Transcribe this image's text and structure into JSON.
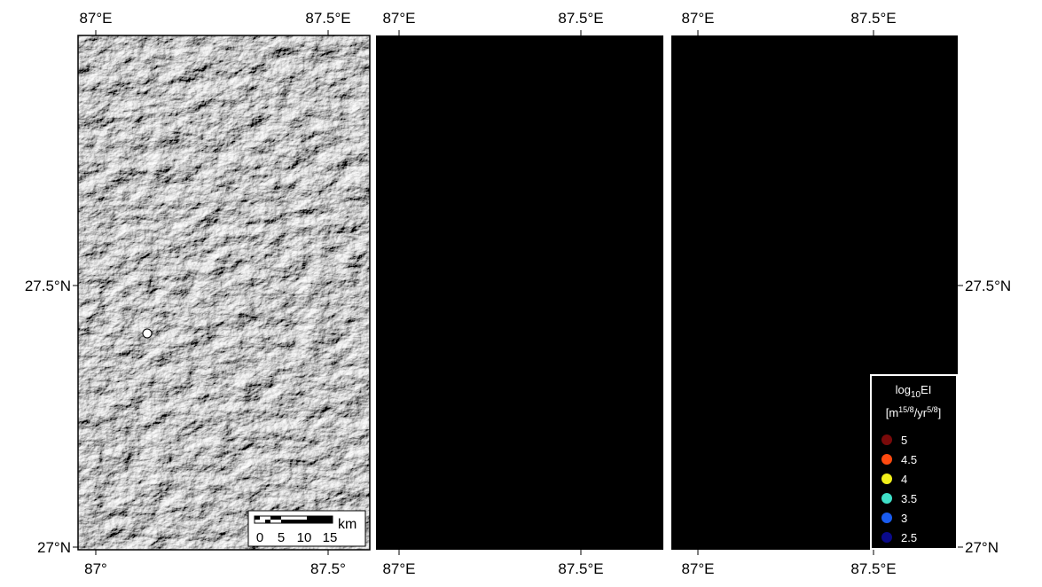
{
  "panels": [
    {
      "top_ticks": [
        "87°E",
        "87.5°E"
      ],
      "bottom_ticks": [
        "87°",
        "87.5°"
      ],
      "left_ticks": [
        "27.5°N",
        "27°N"
      ]
    },
    {
      "top_ticks": [
        "87°E",
        "87.5°E"
      ],
      "bottom_ticks": [
        "87°E",
        "87.5°E"
      ]
    },
    {
      "top_ticks": [
        "87°E",
        "87.5°E"
      ],
      "bottom_ticks": [
        "87°E",
        "87.5°E"
      ],
      "right_ticks": [
        "27.5°N",
        "27°N"
      ]
    }
  ],
  "scale_bar": {
    "unit": "km",
    "labels": [
      "0",
      "5",
      "10",
      "15"
    ]
  },
  "legend": {
    "title": {
      "base": "log",
      "sub": "10",
      "rest": "EI"
    },
    "units": {
      "open": "[m",
      "sup1": "15/8",
      "mid": "/yr",
      "sup2": "5/8",
      "close": "]"
    },
    "entries": [
      {
        "label": "5",
        "color": "#7a0a0a"
      },
      {
        "label": "4.5",
        "color": "#ff4a10"
      },
      {
        "label": "4",
        "color": "#f2f01a"
      },
      {
        "label": "3.5",
        "color": "#3fe0c8"
      },
      {
        "label": "3",
        "color": "#1a5cf0"
      },
      {
        "label": "2.5",
        "color": "#0a0a8a"
      }
    ]
  }
}
